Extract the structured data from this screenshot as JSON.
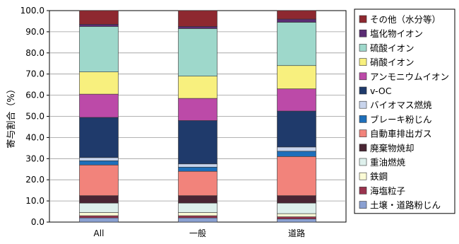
{
  "chart_data": {
    "type": "bar",
    "stacked": true,
    "categories": [
      "All",
      "一般",
      "道路"
    ],
    "ylabel": "寄与割合（%）",
    "ylim": [
      0,
      100
    ],
    "yticks": [
      "0.0",
      "10.0",
      "20.0",
      "30.0",
      "40.0",
      "50.0",
      "60.0",
      "70.0",
      "80.0",
      "90.0",
      "100.0"
    ],
    "legend_position": "right",
    "series": [
      {
        "name": "土壌・道路粉じん",
        "color": "#8aa0d2",
        "values": [
          2.0,
          2.0,
          1.5
        ]
      },
      {
        "name": "海塩粒子",
        "color": "#99334e",
        "values": [
          1.0,
          1.0,
          1.0
        ]
      },
      {
        "name": "鉄鋼",
        "color": "#fbfbd6",
        "values": [
          1.5,
          1.5,
          1.5
        ]
      },
      {
        "name": "重油燃焼",
        "color": "#def0ec",
        "values": [
          4.5,
          4.5,
          5.0
        ]
      },
      {
        "name": "廃棄物焼却",
        "color": "#4a2634",
        "values": [
          3.5,
          3.5,
          3.5
        ]
      },
      {
        "name": "自動車排出ガス",
        "color": "#f2837b",
        "values": [
          14.5,
          11.5,
          18.5
        ]
      },
      {
        "name": "ブレーキ粉じん",
        "color": "#1e6fba",
        "values": [
          2.0,
          2.0,
          2.5
        ]
      },
      {
        "name": "バイオマス燃焼",
        "color": "#c8d4ec",
        "values": [
          1.5,
          1.5,
          2.0
        ]
      },
      {
        "name": "v-OC",
        "color": "#1f3a6b",
        "values": [
          19.0,
          20.5,
          17.0
        ]
      },
      {
        "name": "アンモニウムイオン",
        "color": "#bc4aa8",
        "values": [
          11.0,
          10.5,
          10.5
        ]
      },
      {
        "name": "硝酸イオン",
        "color": "#f8f07e",
        "values": [
          10.5,
          10.5,
          11.0
        ]
      },
      {
        "name": "硫酸イオン",
        "color": "#9ed8cb",
        "values": [
          21.5,
          22.5,
          20.5
        ]
      },
      {
        "name": "塩化物イオン",
        "color": "#5b2c74",
        "values": [
          1.0,
          1.0,
          1.5
        ]
      },
      {
        "name": "その他（水分等）",
        "color": "#8e2830",
        "values": [
          6.5,
          7.5,
          4.0
        ]
      }
    ]
  }
}
